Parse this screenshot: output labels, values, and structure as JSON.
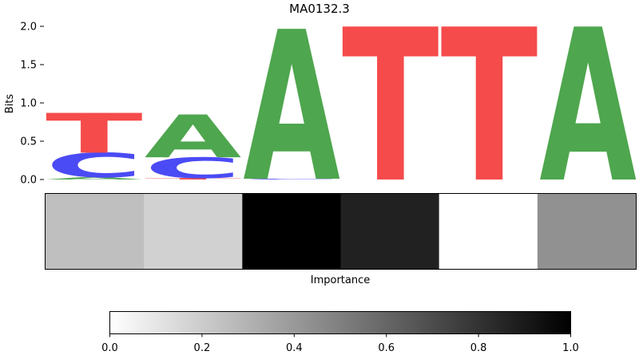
{
  "chart_data": [
    {
      "type": "sequence-logo",
      "title": "MA0132.3",
      "ylabel": "Bits",
      "ylim": [
        0,
        2.0
      ],
      "yticks": [
        "0.0",
        "0.5",
        "1.0",
        "1.5",
        "2.0"
      ],
      "colors": {
        "A": "#4ea64e",
        "C": "#4b4bf5",
        "G": "#f5a623",
        "T": "#f54b4b"
      },
      "positions": [
        [
          {
            "letter": "A",
            "bits": 0.03
          },
          {
            "letter": "C",
            "bits": 0.32
          },
          {
            "letter": "T",
            "bits": 0.52
          }
        ],
        [
          {
            "letter": "T",
            "bits": 0.02
          },
          {
            "letter": "C",
            "bits": 0.27
          },
          {
            "letter": "A",
            "bits": 0.56
          }
        ],
        [
          {
            "letter": "C",
            "bits": 0.01
          },
          {
            "letter": "A",
            "bits": 1.96
          }
        ],
        [
          {
            "letter": "T",
            "bits": 2.0
          }
        ],
        [
          {
            "letter": "T",
            "bits": 2.0
          }
        ],
        [
          {
            "letter": "A",
            "bits": 2.0
          }
        ]
      ]
    },
    {
      "type": "heatmap",
      "xlabel": "Importance",
      "values": [
        0.25,
        0.18,
        1.0,
        0.87,
        0.0,
        0.43
      ]
    },
    {
      "type": "colorbar",
      "range": [
        0.0,
        1.0
      ],
      "ticks": [
        "0.0",
        "0.2",
        "0.4",
        "0.6",
        "0.8",
        "1.0"
      ]
    }
  ]
}
